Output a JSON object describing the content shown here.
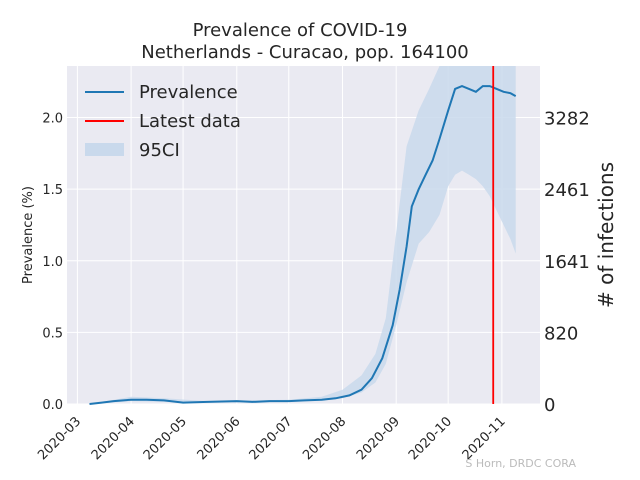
{
  "chart_data": {
    "type": "line",
    "title": "Prevalence of COVID-19",
    "subtitle": "Netherlands - Curacao, pop. 164100",
    "ylabel": "Prevalence (%)",
    "ylabel_right": "# of infections",
    "x_tick_labels": [
      "2020-03",
      "2020-04",
      "2020-05",
      "2020-06",
      "2020-07",
      "2020-08",
      "2020-09",
      "2020-10",
      "2020-11"
    ],
    "x_ticks": [
      "2020-03-01",
      "2020-04-01",
      "2020-05-01",
      "2020-06-01",
      "2020-07-01",
      "2020-08-01",
      "2020-09-01",
      "2020-10-01",
      "2020-11-01"
    ],
    "xlim": [
      "2020-02-24",
      "2020-11-23"
    ],
    "ylim": [
      0,
      2.36
    ],
    "y_ticks": [
      0.0,
      0.5,
      1.0,
      1.5,
      2.0
    ],
    "y_tick_labels": [
      "0.0",
      "0.5",
      "1.0",
      "1.5",
      "2.0"
    ],
    "y_right_ticks": [
      0,
      820,
      1641,
      2461,
      3282
    ],
    "y_right_tick_labels": [
      "0",
      "820",
      "1641",
      "2461",
      "3282"
    ],
    "grid": true,
    "legend": "top-left",
    "legend_entries": [
      "Prevalence",
      "Latest data",
      "95CI"
    ],
    "colors": {
      "prevalence": "#1f77b4",
      "latest": "#ff0000",
      "ci": "#c9d9ec",
      "background": "#eaeaf2"
    },
    "latest_data_date": "2020-10-27",
    "series": [
      {
        "name": "Prevalence",
        "x": [
          "2020-03-08",
          "2020-03-15",
          "2020-03-22",
          "2020-04-01",
          "2020-04-10",
          "2020-04-20",
          "2020-05-01",
          "2020-05-15",
          "2020-06-01",
          "2020-06-10",
          "2020-06-20",
          "2020-07-01",
          "2020-07-10",
          "2020-07-20",
          "2020-07-28",
          "2020-08-05",
          "2020-08-12",
          "2020-08-18",
          "2020-08-24",
          "2020-08-30",
          "2020-09-03",
          "2020-09-07",
          "2020-09-10",
          "2020-09-14",
          "2020-09-18",
          "2020-09-22",
          "2020-09-26",
          "2020-10-01",
          "2020-10-05",
          "2020-10-09",
          "2020-10-13",
          "2020-10-17",
          "2020-10-21",
          "2020-10-25",
          "2020-10-29",
          "2020-11-02",
          "2020-11-06",
          "2020-11-09"
        ],
        "values": [
          0.0,
          0.01,
          0.02,
          0.03,
          0.03,
          0.025,
          0.01,
          0.015,
          0.02,
          0.015,
          0.02,
          0.02,
          0.025,
          0.03,
          0.04,
          0.06,
          0.1,
          0.18,
          0.32,
          0.55,
          0.8,
          1.1,
          1.38,
          1.5,
          1.6,
          1.7,
          1.85,
          2.05,
          2.2,
          2.22,
          2.2,
          2.18,
          2.22,
          2.22,
          2.2,
          2.18,
          2.17,
          2.15
        ]
      },
      {
        "name": "95CI",
        "x": [
          "2020-03-08",
          "2020-04-01",
          "2020-04-20",
          "2020-05-15",
          "2020-06-10",
          "2020-07-01",
          "2020-07-20",
          "2020-08-01",
          "2020-08-12",
          "2020-08-20",
          "2020-08-26",
          "2020-09-01",
          "2020-09-07",
          "2020-09-14",
          "2020-09-20",
          "2020-09-26",
          "2020-10-01",
          "2020-10-05",
          "2020-10-09",
          "2020-10-13",
          "2020-10-17",
          "2020-10-21",
          "2020-10-25",
          "2020-10-29",
          "2020-11-02",
          "2020-11-06",
          "2020-11-09"
        ],
        "lower": [
          0.0,
          0.02,
          0.015,
          0.01,
          0.012,
          0.015,
          0.025,
          0.04,
          0.08,
          0.15,
          0.28,
          0.55,
          0.85,
          1.12,
          1.2,
          1.32,
          1.52,
          1.6,
          1.63,
          1.6,
          1.57,
          1.52,
          1.45,
          1.35,
          1.25,
          1.15,
          1.05
        ],
        "upper": [
          0.0,
          0.05,
          0.04,
          0.02,
          0.025,
          0.03,
          0.05,
          0.1,
          0.2,
          0.35,
          0.6,
          1.2,
          1.8,
          2.05,
          2.2,
          2.36,
          2.36,
          2.36,
          2.36,
          2.36,
          2.36,
          2.36,
          2.36,
          2.36,
          2.36,
          2.36,
          2.36
        ]
      }
    ]
  },
  "credit": "S Horn, DRDC CORA"
}
